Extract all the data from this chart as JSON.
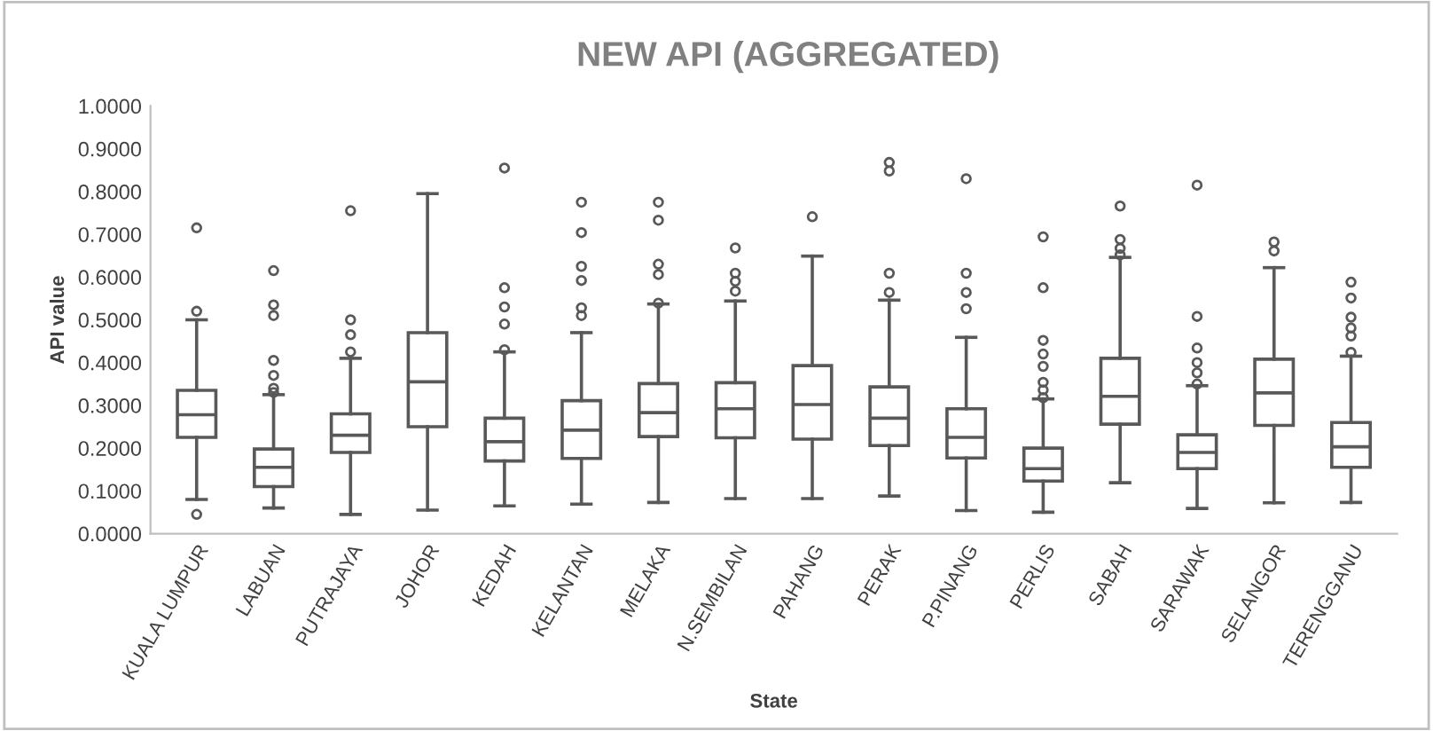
{
  "chart_data": {
    "type": "box",
    "title": "NEW API (AGGREGATED)",
    "xlabel": "State",
    "ylabel": "API value",
    "color": "#595959",
    "categories": [
      "KUALA LUMPUR",
      "LABUAN",
      "PUTRAJAYA",
      "JOHOR",
      "KEDAH",
      "KELANTAN",
      "MELAKA",
      "N.SEMBILAN",
      "PAHANG",
      "PERAK",
      "P.PINANG",
      "PERLIS",
      "SABAH",
      "SARAWAK",
      "SELANGOR",
      "TERENGGANU"
    ],
    "boxes": [
      {
        "low": 0.08,
        "q1": 0.225,
        "median": 0.278,
        "q3": 0.335,
        "high": 0.5,
        "outliers": [
          0.715,
          0.52,
          0.045
        ]
      },
      {
        "low": 0.06,
        "q1": 0.11,
        "median": 0.155,
        "q3": 0.198,
        "high": 0.325,
        "outliers": [
          0.615,
          0.535,
          0.51,
          0.405,
          0.37,
          0.34,
          0.33
        ]
      },
      {
        "low": 0.045,
        "q1": 0.19,
        "median": 0.23,
        "q3": 0.28,
        "high": 0.41,
        "outliers": [
          0.755,
          0.5,
          0.465,
          0.425
        ]
      },
      {
        "low": 0.055,
        "q1": 0.25,
        "median": 0.355,
        "q3": 0.47,
        "high": 0.795
      },
      {
        "low": 0.065,
        "q1": 0.17,
        "median": 0.215,
        "q3": 0.27,
        "high": 0.425,
        "outliers": [
          0.855,
          0.575,
          0.53,
          0.49,
          0.43
        ]
      },
      {
        "low": 0.069,
        "q1": 0.176,
        "median": 0.242,
        "q3": 0.311,
        "high": 0.47,
        "outliers": [
          0.775,
          0.704,
          0.625,
          0.592,
          0.528,
          0.51
        ]
      },
      {
        "low": 0.073,
        "q1": 0.227,
        "median": 0.283,
        "q3": 0.351,
        "high": 0.537,
        "outliers": [
          0.775,
          0.733,
          0.63,
          0.606,
          0.539
        ]
      },
      {
        "low": 0.082,
        "q1": 0.224,
        "median": 0.292,
        "q3": 0.353,
        "high": 0.544,
        "outliers": [
          0.668,
          0.609,
          0.59,
          0.567
        ]
      },
      {
        "low": 0.082,
        "q1": 0.221,
        "median": 0.302,
        "q3": 0.393,
        "high": 0.649,
        "outliers": [
          0.741
        ]
      },
      {
        "low": 0.088,
        "q1": 0.206,
        "median": 0.27,
        "q3": 0.343,
        "high": 0.546,
        "outliers": [
          0.868,
          0.848,
          0.609,
          0.564
        ]
      },
      {
        "low": 0.054,
        "q1": 0.177,
        "median": 0.225,
        "q3": 0.292,
        "high": 0.459,
        "outliers": [
          0.83,
          0.609,
          0.564,
          0.526
        ]
      },
      {
        "low": 0.05,
        "q1": 0.123,
        "median": 0.152,
        "q3": 0.2,
        "high": 0.315,
        "outliers": [
          0.694,
          0.575,
          0.452,
          0.42,
          0.391,
          0.354,
          0.336,
          0.318
        ]
      },
      {
        "low": 0.119,
        "q1": 0.256,
        "median": 0.321,
        "q3": 0.41,
        "high": 0.646,
        "outliers": [
          0.766,
          0.688,
          0.667,
          0.652
        ]
      },
      {
        "low": 0.059,
        "q1": 0.152,
        "median": 0.19,
        "q3": 0.231,
        "high": 0.346,
        "outliers": [
          0.815,
          0.508,
          0.434,
          0.4,
          0.376,
          0.35
        ]
      },
      {
        "low": 0.072,
        "q1": 0.253,
        "median": 0.329,
        "q3": 0.408,
        "high": 0.622,
        "outliers": [
          0.682,
          0.661
        ]
      },
      {
        "low": 0.073,
        "q1": 0.155,
        "median": 0.203,
        "q3": 0.26,
        "high": 0.415,
        "outliers": [
          0.588,
          0.551,
          0.506,
          0.481,
          0.462,
          0.424
        ]
      }
    ],
    "ylim": [
      0,
      1
    ],
    "yticks": [
      {
        "value": 0,
        "label": "0.0000"
      },
      {
        "value": 0.1,
        "label": "0.1000"
      },
      {
        "value": 0.2,
        "label": "0.2000"
      },
      {
        "value": 0.3,
        "label": "0.3000"
      },
      {
        "value": 0.4,
        "label": "0.4000"
      },
      {
        "value": 0.5,
        "label": "0.5000"
      },
      {
        "value": 0.6,
        "label": "0.6000"
      },
      {
        "value": 0.7,
        "label": "0.7000"
      },
      {
        "value": 0.8,
        "label": "0.8000"
      },
      {
        "value": 0.9,
        "label": "0.9000"
      },
      {
        "value": 1,
        "label": "1.0000"
      }
    ],
    "grid": false
  }
}
